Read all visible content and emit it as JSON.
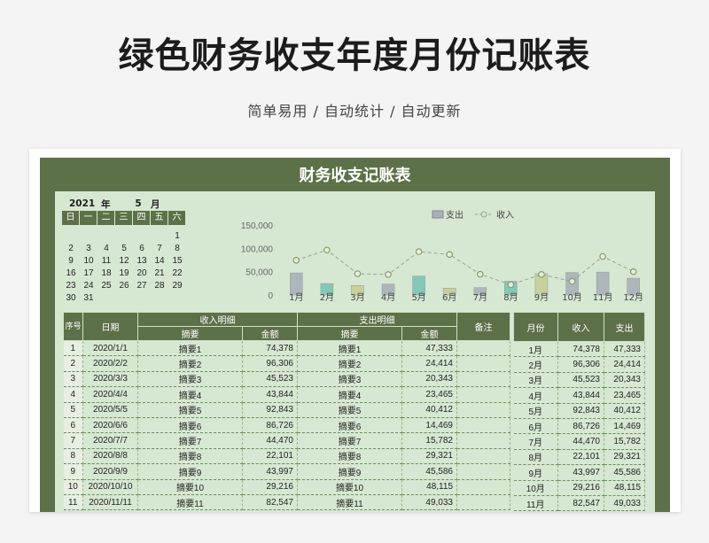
{
  "header": {
    "title": "绿色财务收支年度月份记账表",
    "subtitle": "简单易用 / 自动统计 / 自动更新"
  },
  "sheet": {
    "title": "财务收支记账表"
  },
  "calendar": {
    "year": "2021",
    "year_label": "年",
    "month": "5",
    "month_label": "月",
    "weekdays": [
      "日",
      "一",
      "二",
      "三",
      "四",
      "五",
      "六"
    ],
    "rows": [
      [
        "",
        "",
        "",
        "",
        "",
        "",
        "1"
      ],
      [
        "2",
        "3",
        "4",
        "5",
        "6",
        "7",
        "8"
      ],
      [
        "9",
        "10",
        "11",
        "12",
        "13",
        "14",
        "15"
      ],
      [
        "16",
        "17",
        "18",
        "19",
        "20",
        "21",
        "22"
      ],
      [
        "23",
        "24",
        "25",
        "26",
        "27",
        "28",
        "29"
      ],
      [
        "30",
        "31",
        "",
        "",
        "",
        "",
        ""
      ]
    ]
  },
  "chart_data": {
    "type": "bar",
    "categories": [
      "1月",
      "2月",
      "3月",
      "4月",
      "5月",
      "6月",
      "7月",
      "8月",
      "9月",
      "10月",
      "11月",
      "12月"
    ],
    "series": [
      {
        "name": "支出",
        "type": "bar",
        "values": [
          47333,
          24414,
          20343,
          23465,
          40412,
          14469,
          15782,
          29321,
          45586,
          48115,
          49033,
          36000
        ]
      },
      {
        "name": "收入",
        "type": "line",
        "values": [
          74378,
          96306,
          45523,
          43844,
          92843,
          86726,
          44470,
          22101,
          43997,
          29216,
          82547,
          50000
        ]
      }
    ],
    "yticks": [
      "150,000",
      "100,000",
      "50,000",
      "0"
    ],
    "ylim": [
      0,
      150000
    ],
    "legend": "top",
    "bar_colors": [
      "#a9b1b8",
      "#7cc6b5",
      "#c8cf95",
      "#a9b1b8",
      "#7cc6b5",
      "#c8cf95",
      "#a9b1b8",
      "#7cc6b5",
      "#c8cf95",
      "#a9b1b8",
      "#a9b1b8",
      "#a9b1b8"
    ],
    "line_color": "#9aa38e"
  },
  "table": {
    "headers": {
      "index": "序号",
      "date": "日期",
      "income_group": "收入明细",
      "expense_group": "支出明细",
      "note": "备注",
      "summary": "摘要",
      "amount": "金额"
    },
    "rows": [
      {
        "idx": "1",
        "date": "2020/1/1",
        "in_sum": "摘要1",
        "in_amt": "74,378",
        "out_sum": "摘要1",
        "out_amt": "47,333"
      },
      {
        "idx": "2",
        "date": "2020/2/2",
        "in_sum": "摘要2",
        "in_amt": "96,306",
        "out_sum": "摘要2",
        "out_amt": "24,414"
      },
      {
        "idx": "3",
        "date": "2020/3/3",
        "in_sum": "摘要3",
        "in_amt": "45,523",
        "out_sum": "摘要3",
        "out_amt": "20,343"
      },
      {
        "idx": "4",
        "date": "2020/4/4",
        "in_sum": "摘要4",
        "in_amt": "43,844",
        "out_sum": "摘要4",
        "out_amt": "23,465"
      },
      {
        "idx": "5",
        "date": "2020/5/5",
        "in_sum": "摘要5",
        "in_amt": "92,843",
        "out_sum": "摘要5",
        "out_amt": "40,412"
      },
      {
        "idx": "6",
        "date": "2020/6/6",
        "in_sum": "摘要6",
        "in_amt": "86,726",
        "out_sum": "摘要6",
        "out_amt": "14,469"
      },
      {
        "idx": "7",
        "date": "2020/7/7",
        "in_sum": "摘要7",
        "in_amt": "44,470",
        "out_sum": "摘要7",
        "out_amt": "15,782"
      },
      {
        "idx": "8",
        "date": "2020/8/8",
        "in_sum": "摘要8",
        "in_amt": "22,101",
        "out_sum": "摘要8",
        "out_amt": "29,321"
      },
      {
        "idx": "9",
        "date": "2020/9/9",
        "in_sum": "摘要9",
        "in_amt": "43,997",
        "out_sum": "摘要9",
        "out_amt": "45,586"
      },
      {
        "idx": "10",
        "date": "2020/10/10",
        "in_sum": "摘要10",
        "in_amt": "29,216",
        "out_sum": "摘要10",
        "out_amt": "48,115"
      },
      {
        "idx": "11",
        "date": "2020/11/11",
        "in_sum": "摘要11",
        "in_amt": "82,547",
        "out_sum": "摘要11",
        "out_amt": "49,033"
      }
    ]
  },
  "summary_table": {
    "headers": {
      "month": "月份",
      "income": "收入",
      "expense": "支出"
    },
    "rows": [
      {
        "month": "1月",
        "income": "74,378",
        "expense": "47,333"
      },
      {
        "month": "2月",
        "income": "96,306",
        "expense": "24,414"
      },
      {
        "month": "3月",
        "income": "45,523",
        "expense": "20,343"
      },
      {
        "month": "4月",
        "income": "43,844",
        "expense": "23,465"
      },
      {
        "month": "5月",
        "income": "92,843",
        "expense": "40,412"
      },
      {
        "month": "6月",
        "income": "86,726",
        "expense": "14,469"
      },
      {
        "month": "7月",
        "income": "44,470",
        "expense": "15,782"
      },
      {
        "month": "8月",
        "income": "22,101",
        "expense": "29,321"
      },
      {
        "month": "9月",
        "income": "43,997",
        "expense": "45,586"
      },
      {
        "month": "10月",
        "income": "29,216",
        "expense": "48,115"
      },
      {
        "month": "11月",
        "income": "82,547",
        "expense": "49,033"
      }
    ]
  }
}
